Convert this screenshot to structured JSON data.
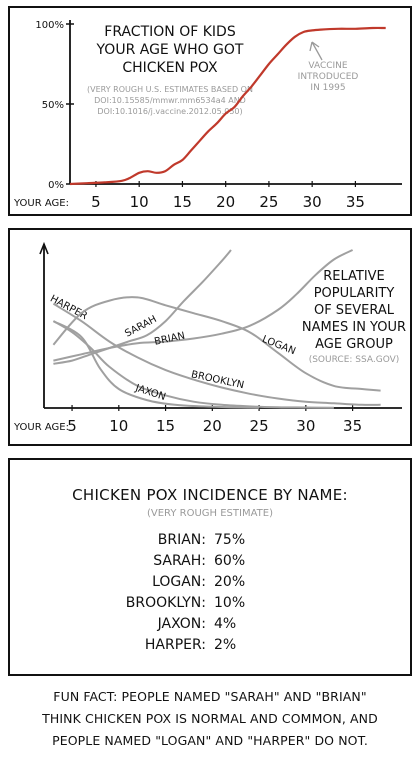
{
  "chart_data": [
    {
      "type": "line",
      "title": "FRACTION OF KIDS YOUR AGE WHO GOT CHICKEN POX",
      "note": "(VERY ROUGH U.S. ESTIMATES BASED ON DOI:10.15585/mmwr.mm6534a4 AND DOI:10.1016/j.vaccine.2012.05.050)",
      "xlabel": "YOUR AGE:",
      "x_ticks": [
        "5",
        "10",
        "15",
        "20",
        "25",
        "30",
        "35"
      ],
      "y_ticks": [
        "100%",
        "50%",
        "0%"
      ],
      "xlim": [
        2,
        39
      ],
      "ylim": [
        0,
        100
      ],
      "annotation": "VACCINE INTRODUCED IN 1995",
      "series": [
        {
          "color": "#c0392b",
          "x": [
            2,
            4,
            6,
            8,
            9,
            10,
            11,
            12,
            13,
            14,
            15,
            16,
            17,
            18,
            19,
            20,
            21,
            22,
            23,
            24,
            25,
            26,
            27,
            28,
            29,
            30,
            31,
            33,
            35,
            37,
            38.5
          ],
          "y": [
            0,
            0.5,
            1,
            2,
            4,
            7,
            8,
            7,
            8,
            12,
            15,
            21,
            27,
            33,
            38,
            44,
            48,
            55,
            61,
            68,
            75,
            81,
            87,
            92,
            95,
            96,
            96.5,
            97,
            97,
            97.5,
            97.5
          ]
        }
      ]
    },
    {
      "type": "line",
      "title": "RELATIVE POPULARITY OF SEVERAL NAMES IN YOUR AGE GROUP",
      "note": "(SOURCE: SSA.GOV)",
      "xlabel": "YOUR AGE:",
      "x_ticks": [
        "5",
        "10",
        "15",
        "20",
        "25",
        "30",
        "35"
      ],
      "xlim": [
        2,
        39
      ],
      "ylim": [
        0,
        100
      ],
      "series": [
        {
          "name": "HARPER",
          "x": [
            3,
            5,
            7,
            9,
            12,
            15,
            18,
            21,
            24,
            27,
            30,
            33
          ],
          "y": [
            55,
            48,
            38,
            26,
            14,
            8,
            4,
            2,
            1,
            0.5,
            0.3,
            0.2
          ]
        },
        {
          "name": "SARAH",
          "x": [
            3,
            5,
            7,
            9,
            11,
            13,
            15,
            17,
            19,
            21,
            22
          ],
          "y": [
            28,
            30,
            34,
            38,
            42,
            46,
            55,
            68,
            80,
            93,
            100
          ]
        },
        {
          "name": "BRIAN",
          "x": [
            3,
            6,
            9,
            12,
            15,
            18,
            21,
            24,
            27,
            29,
            31,
            33,
            35
          ],
          "y": [
            30,
            34,
            38,
            41,
            42,
            44,
            47,
            52,
            62,
            72,
            84,
            94,
            100
          ]
        },
        {
          "name": "LOGAN",
          "x": [
            3,
            6,
            9,
            12,
            15,
            18,
            21,
            24,
            27,
            30,
            33,
            36,
            38
          ],
          "y": [
            40,
            60,
            68,
            70,
            65,
            60,
            55,
            48,
            35,
            22,
            14,
            12,
            11
          ]
        },
        {
          "name": "JAXON",
          "x": [
            3,
            6,
            8,
            10,
            13,
            16,
            19,
            22,
            25
          ],
          "y": [
            55,
            45,
            25,
            12,
            5,
            2,
            1,
            0.5,
            0.2
          ]
        },
        {
          "name": "BROOKLYN",
          "x": [
            3,
            6,
            9,
            12,
            15,
            18,
            21,
            24,
            27,
            30,
            33,
            36,
            38
          ],
          "y": [
            66,
            55,
            42,
            32,
            24,
            18,
            13,
            9,
            6,
            4,
            3,
            2,
            2
          ]
        }
      ]
    }
  ],
  "panel3": {
    "title": "CHICKEN POX INCIDENCE BY NAME:",
    "subtitle": "(VERY ROUGH ESTIMATE)",
    "rows": [
      {
        "name": "BRIAN:",
        "value": "75%"
      },
      {
        "name": "SARAH:",
        "value": "60%"
      },
      {
        "name": "LOGAN:",
        "value": "20%"
      },
      {
        "name": "BROOKLYN:",
        "value": "10%"
      },
      {
        "name": "JAXON:",
        "value": "4%"
      },
      {
        "name": "HARPER:",
        "value": "2%"
      }
    ]
  },
  "caption": {
    "line1": "FUN FACT: PEOPLE NAMED \"SARAH\" AND \"BRIAN\"",
    "line2": "THINK CHICKEN POX IS NORMAL AND COMMON, AND",
    "line3": "PEOPLE NAMED \"LOGAN\" AND \"HARPER\" DO NOT."
  },
  "colors": {
    "ink": "#111111",
    "red": "#c0392b",
    "gray": "#9a9a9a"
  }
}
